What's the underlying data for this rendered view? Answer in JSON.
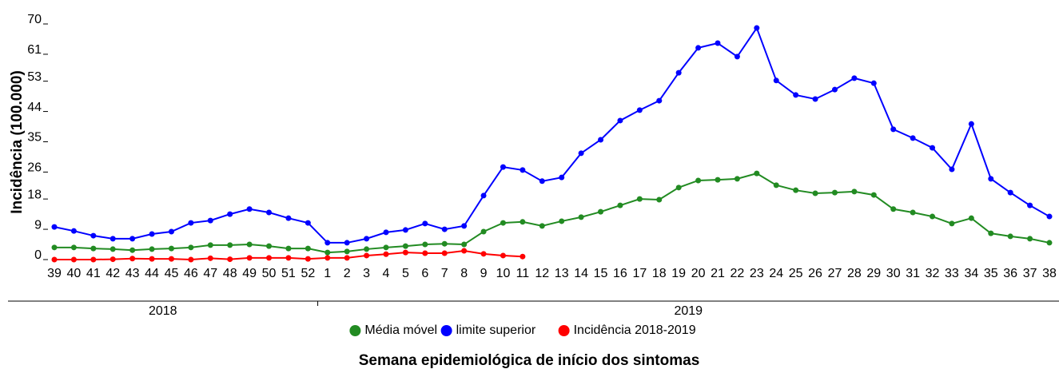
{
  "chart_data": {
    "type": "line",
    "y_label": "Incidência (100.000)",
    "x_label": "Semana epidemiológica de início dos sintomas",
    "x_groups": [
      "2018",
      "2019"
    ],
    "categories": [
      "39",
      "40",
      "41",
      "42",
      "43",
      "44",
      "45",
      "46",
      "47",
      "48",
      "49",
      "50",
      "51",
      "52",
      "1",
      "2",
      "3",
      "4",
      "5",
      "6",
      "7",
      "8",
      "9",
      "10",
      "11",
      "12",
      "13",
      "14",
      "15",
      "16",
      "17",
      "18",
      "19",
      "20",
      "21",
      "22",
      "23",
      "24",
      "25",
      "26",
      "27",
      "28",
      "29",
      "30",
      "31",
      "32",
      "33",
      "34",
      "35",
      "36",
      "37",
      "38"
    ],
    "series": [
      {
        "name": "Média móvel",
        "color": "#228b22",
        "values": [
          3.6,
          3.6,
          3.3,
          3.1,
          2.8,
          3.1,
          3.3,
          3.6,
          4.3,
          4.3,
          4.5,
          4.0,
          3.3,
          3.3,
          2.1,
          2.4,
          3.1,
          3.6,
          4.0,
          4.5,
          4.7,
          4.5,
          8.3,
          10.9,
          11.2,
          10.0,
          11.4,
          12.6,
          14.2,
          16.1,
          18.0,
          17.8,
          21.4,
          23.5,
          23.7,
          24.0,
          25.6,
          22.1,
          20.6,
          19.7,
          19.9,
          20.2,
          19.2,
          15.0,
          14.0,
          12.8,
          10.7,
          12.3,
          7.8,
          6.9,
          6.2,
          5.0
        ]
      },
      {
        "name": "limite superior",
        "color": "#0000ff",
        "values": [
          9.7,
          8.5,
          7.1,
          6.2,
          6.2,
          7.6,
          8.3,
          10.9,
          11.6,
          13.5,
          15.0,
          14.0,
          12.3,
          10.9,
          5.0,
          5.0,
          6.2,
          8.1,
          8.8,
          10.7,
          9.0,
          10.0,
          19.0,
          27.5,
          26.6,
          23.3,
          24.4,
          31.6,
          35.6,
          41.3,
          44.4,
          47.2,
          55.5,
          62.9,
          64.3,
          60.3,
          68.8,
          53.2,
          48.9,
          47.7,
          50.5,
          53.9,
          52.4,
          38.7,
          36.1,
          33.2,
          26.8,
          40.3,
          24.0,
          19.9,
          16.1,
          12.8
        ]
      },
      {
        "name": "Incidência 2018-2019",
        "color": "#ff0000",
        "values": [
          0,
          0,
          0,
          0.1,
          0.3,
          0.2,
          0.2,
          0,
          0.4,
          0.1,
          0.5,
          0.5,
          0.5,
          0.2,
          0.5,
          0.5,
          1.2,
          1.6,
          2.1,
          1.9,
          1.9,
          2.6,
          1.7,
          1.2,
          0.9,
          null,
          null,
          null,
          null,
          null,
          null,
          null,
          null,
          null,
          null,
          null,
          null,
          null,
          null,
          null,
          null,
          null,
          null,
          null,
          null,
          null,
          null,
          null,
          null,
          null,
          null,
          null
        ]
      }
    ],
    "ylim": [
      0,
      70
    ],
    "yticks": [
      0,
      9,
      18,
      26,
      35,
      44,
      53,
      61,
      70
    ]
  }
}
